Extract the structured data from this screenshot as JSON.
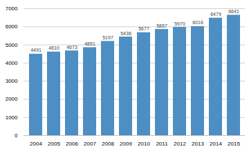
{
  "chart_data": {
    "type": "bar",
    "categories": [
      "2004",
      "2005",
      "2006",
      "2007",
      "2008",
      "2009",
      "2010",
      "2011",
      "2012",
      "2013",
      "2014",
      "2015"
    ],
    "values": [
      4491,
      4610,
      4673,
      4851,
      5197,
      5438,
      5677,
      5857,
      5970,
      6016,
      6479,
      6641
    ],
    "color": "#4d8ec4",
    "ylim": [
      0,
      7000
    ],
    "yticks": [
      0,
      1000,
      2000,
      3000,
      4000,
      5000,
      6000,
      7000
    ],
    "grid": true,
    "data_labels": true
  }
}
